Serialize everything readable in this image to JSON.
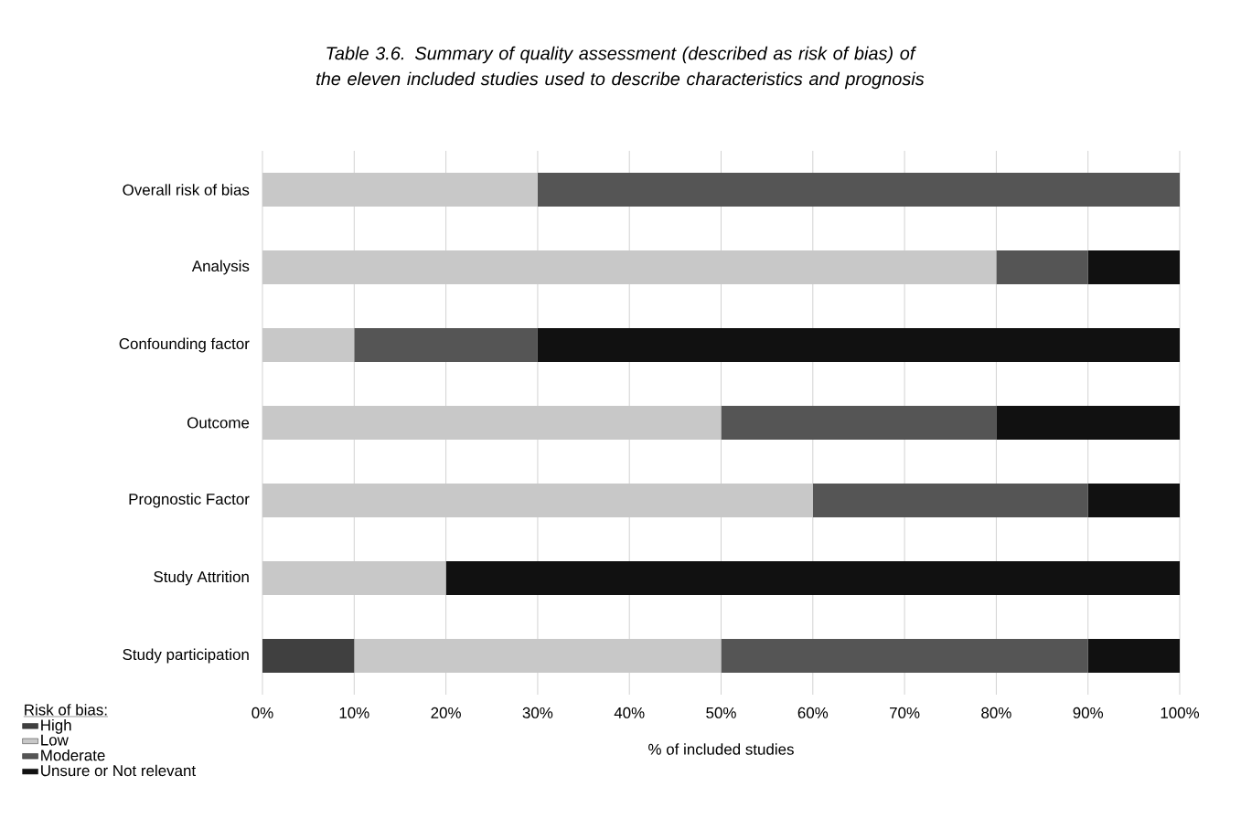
{
  "chart_data": {
    "type": "bar",
    "orientation": "horizontal",
    "stacked": true,
    "title": "Table 3.6. Summary of quality assessment (described as risk of bias) of the eleven included studies used to describe characteristics and prognosis",
    "categories": [
      "Overall risk of bias",
      "Analysis",
      "Confounding factor",
      "Outcome",
      "Prognostic Factor",
      "Study Attrition",
      "Study participation"
    ],
    "series": [
      {
        "name": "High",
        "color": "#404040",
        "values": [
          0,
          0,
          0,
          0,
          0,
          0,
          10
        ]
      },
      {
        "name": "Low",
        "color": "#c8c8c8",
        "values": [
          30,
          80,
          10,
          50,
          60,
          20,
          40
        ]
      },
      {
        "name": "Moderate",
        "color": "#555555",
        "values": [
          70,
          10,
          20,
          30,
          30,
          0,
          40
        ]
      },
      {
        "name": "Unsure or Not relevant",
        "color": "#111111",
        "values": [
          0,
          10,
          70,
          20,
          10,
          80,
          10
        ]
      }
    ],
    "xlim": [
      0,
      100
    ],
    "xticks": [
      {
        "value": 0,
        "label": "0%"
      },
      {
        "value": 10,
        "label": "10%"
      },
      {
        "value": 20,
        "label": "20%"
      },
      {
        "value": 30,
        "label": "30%"
      },
      {
        "value": 40,
        "label": "40%"
      },
      {
        "value": 50,
        "label": "50%"
      },
      {
        "value": 60,
        "label": "60%"
      },
      {
        "value": 70,
        "label": "70%"
      },
      {
        "value": 80,
        "label": "80%"
      },
      {
        "value": 90,
        "label": "90%"
      },
      {
        "value": 100,
        "label": "100%"
      }
    ],
    "xlabel": "% of included studies",
    "legend_title": "Risk of bias:",
    "legend": "bottom left",
    "grid": "x"
  }
}
